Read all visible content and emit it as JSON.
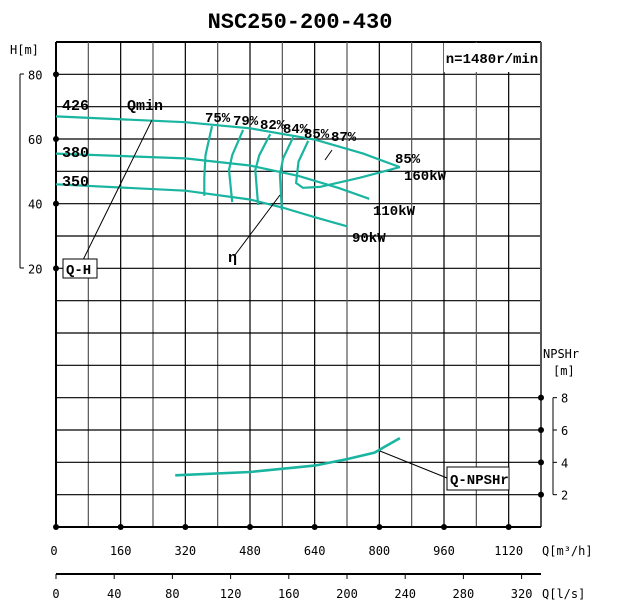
{
  "chart_data": {
    "type": "line",
    "title": "NSC250-200-430",
    "speed_label": "n=1480r/min",
    "x_axis": {
      "label": "Q[m³/h]",
      "ticks": [
        "0",
        "160",
        "320",
        "480",
        "640",
        "800",
        "960",
        "1120"
      ],
      "range": [
        0,
        1200
      ],
      "grid_step": 80
    },
    "x2_axis": {
      "label": "Q[l/s]",
      "ticks": [
        "0",
        "40",
        "80",
        "120",
        "160",
        "200",
        "240",
        "280",
        "320"
      ]
    },
    "y_axis": {
      "label": "H[m]",
      "ticks": [
        "80",
        "60",
        "40",
        "20"
      ],
      "range": [
        -60,
        90
      ],
      "grid_step": 10
    },
    "y2_axis": {
      "label_line1": "NPSHr",
      "label_line2": "[m]",
      "ticks": [
        "8",
        "6",
        "4",
        "2"
      ],
      "range": [
        0,
        30
      ]
    },
    "grid": true,
    "curve_color": "#1ab5a0",
    "head_curves": [
      {
        "name": "426",
        "power": "160kW",
        "points": [
          [
            0,
            67
          ],
          [
            320,
            65.2
          ],
          [
            480,
            63.3
          ],
          [
            640,
            59.8
          ],
          [
            760,
            55.5
          ],
          [
            851,
            51.3
          ]
        ]
      },
      {
        "name": "380",
        "power": "110kW",
        "points": [
          [
            0,
            55.5
          ],
          [
            320,
            54
          ],
          [
            480,
            51.8
          ],
          [
            600,
            48.6
          ],
          [
            700,
            44.8
          ],
          [
            775,
            41.5
          ]
        ]
      },
      {
        "name": "350",
        "power": "90kW",
        "points": [
          [
            0,
            46
          ],
          [
            320,
            44
          ],
          [
            480,
            41.3
          ],
          [
            560,
            38.8
          ],
          [
            640,
            35.8
          ],
          [
            720,
            33
          ]
        ]
      }
    ],
    "efficiency_curves": [
      {
        "name": "75%",
        "points": [
          [
            386,
            64
          ],
          [
            370,
            55
          ],
          [
            367,
            48
          ],
          [
            367,
            42.4
          ]
        ]
      },
      {
        "name": "79%",
        "points": [
          [
            463,
            62.8
          ],
          [
            436,
            55
          ],
          [
            428,
            50.4
          ],
          [
            436,
            40.5
          ]
        ]
      },
      {
        "name": "82%",
        "points": [
          [
            530,
            61.5
          ],
          [
            503,
            55
          ],
          [
            493,
            50.4
          ],
          [
            500,
            39.6
          ]
        ]
      },
      {
        "name": "84%",
        "points": [
          [
            587,
            60.6
          ],
          [
            562,
            54
          ],
          [
            554,
            48.9
          ],
          [
            559,
            38
          ]
        ]
      },
      {
        "name": "85%",
        "points": [
          [
            624,
            59.4
          ],
          [
            600,
            53
          ],
          [
            594,
            46.4
          ],
          [
            611,
            44.9
          ],
          [
            653,
            45.2
          ],
          [
            751,
            48
          ],
          [
            851,
            51.3
          ]
        ]
      }
    ],
    "efficiency_labels": [
      "75%",
      "79%",
      "82%",
      "84%",
      "85%",
      "87%",
      "85%"
    ],
    "npshr_curve": {
      "name": "Q-NPSHr",
      "points": [
        [
          295,
          3.2
        ],
        [
          480,
          3.4
        ],
        [
          640,
          3.8
        ],
        [
          720,
          4.2
        ],
        [
          788,
          4.6
        ],
        [
          851,
          5.5
        ]
      ]
    },
    "annotations": {
      "qmin": "Qmin",
      "qh": "Q-H",
      "eta": "η"
    }
  }
}
